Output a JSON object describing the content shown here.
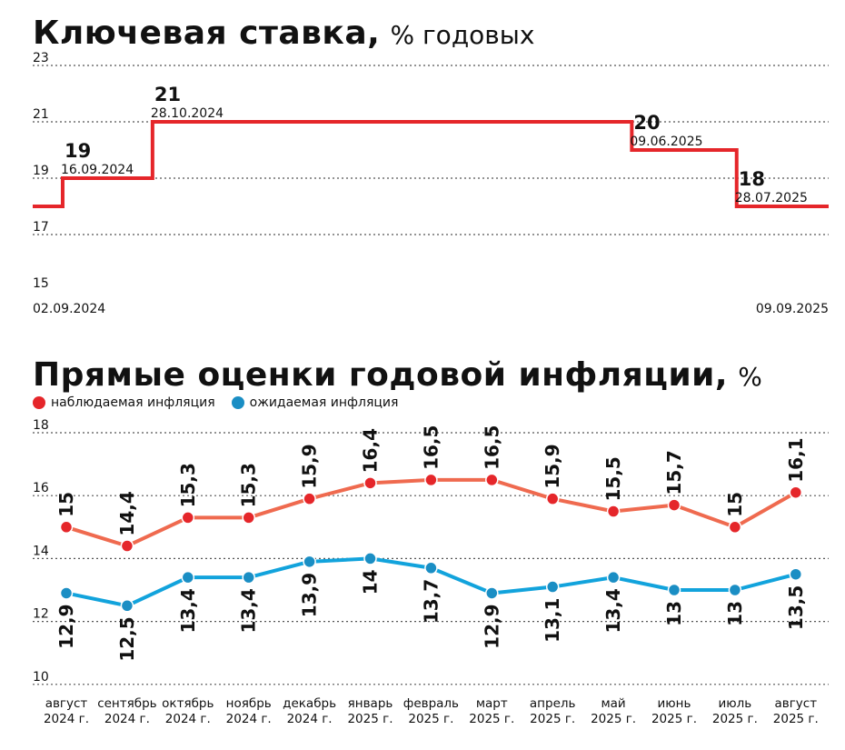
{
  "colors": {
    "rate_line": "#e5262a",
    "observed_line": "#ef6a4f",
    "observed_dot": "#e5262a",
    "expected_line": "#12a3dc",
    "expected_dot": "#1a8ec4"
  },
  "chart_data": [
    {
      "type": "line",
      "title": "Ключевая ставка,",
      "subtitle": "% годовых",
      "yticks": [
        "23",
        "21",
        "19",
        "17",
        "15"
      ],
      "ylim": [
        15,
        23
      ],
      "grid": true,
      "start_date_label": "02.09.2024",
      "end_date_label": "09.09.2025",
      "series": [
        {
          "steps": [
            {
              "from": "02.09.2024",
              "value": 18
            },
            {
              "from": "16.09.2024",
              "value": 19
            },
            {
              "from": "28.10.2024",
              "value": 21
            },
            {
              "from": "09.06.2025",
              "value": 20
            },
            {
              "from": "28.07.2025",
              "value": 18
            },
            {
              "from": "09.09.2025",
              "value": 18
            }
          ]
        }
      ],
      "annotations": [
        {
          "value": "19",
          "date": "16.09.2024"
        },
        {
          "value": "21",
          "date": "28.10.2024"
        },
        {
          "value": "20",
          "date": "09.06.2025"
        },
        {
          "value": "18",
          "date": "28.07.2025"
        }
      ]
    },
    {
      "type": "line",
      "title": "Прямые оценки годовой инфляции,",
      "subtitle": "%",
      "ylim": [
        10,
        18
      ],
      "yticks": [
        "18",
        "16",
        "14",
        "12",
        "10"
      ],
      "grid": true,
      "legend_position": "top-left",
      "categories": [
        [
          "август",
          "2024 г."
        ],
        [
          "сентябрь",
          "2024 г."
        ],
        [
          "октябрь",
          "2024 г."
        ],
        [
          "ноябрь",
          "2024 г."
        ],
        [
          "декабрь",
          "2024 г."
        ],
        [
          "январь",
          "2025 г."
        ],
        [
          "февраль",
          "2025 г."
        ],
        [
          "март",
          "2025 г."
        ],
        [
          "апрель",
          "2025 г."
        ],
        [
          "май",
          "2025 г."
        ],
        [
          "июнь",
          "2025 г."
        ],
        [
          "июль",
          "2025 г."
        ],
        [
          "август",
          "2025 г."
        ]
      ],
      "series": [
        {
          "name": "наблюдаемая инфляция",
          "values": [
            15,
            14.4,
            15.3,
            15.3,
            15.9,
            16.4,
            16.5,
            16.5,
            15.9,
            15.5,
            15.7,
            15,
            16.1
          ],
          "labels": [
            "15",
            "14,4",
            "15,3",
            "15,3",
            "15,9",
            "16,4",
            "16,5",
            "16,5",
            "15,9",
            "15,5",
            "15,7",
            "15",
            "16,1"
          ]
        },
        {
          "name": "ожидаемая инфляция",
          "values": [
            12.9,
            12.5,
            13.4,
            13.4,
            13.9,
            14,
            13.7,
            12.9,
            13.1,
            13.4,
            13,
            13,
            13.5
          ],
          "labels": [
            "12,9",
            "12,5",
            "13,4",
            "13,4",
            "13,9",
            "14",
            "13,7",
            "12,9",
            "13,1",
            "13,4",
            "13",
            "13",
            "13,5"
          ]
        }
      ]
    }
  ]
}
